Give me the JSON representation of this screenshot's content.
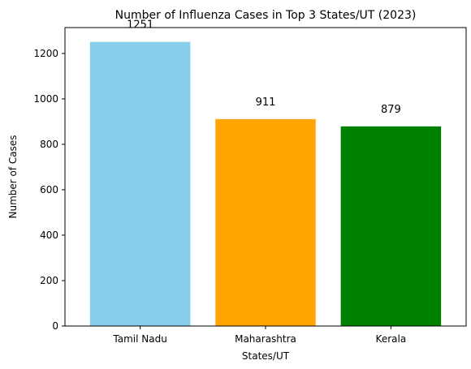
{
  "chart_data": {
    "type": "bar",
    "title": "Number of Influenza Cases in Top 3 States/UT (2023)",
    "xlabel": "States/UT",
    "ylabel": "Number of Cases",
    "categories": [
      "Tamil Nadu",
      "Maharashtra",
      "Kerala"
    ],
    "values": [
      1251,
      911,
      879
    ],
    "data_labels": [
      "1251",
      "911",
      "879"
    ],
    "colors": [
      "#87ceeb",
      "#ffa500",
      "#008000"
    ],
    "ylim": [
      0,
      1314
    ],
    "yticks": [
      0,
      200,
      400,
      600,
      800,
      1000,
      1200
    ],
    "ytick_labels": [
      "0",
      "200",
      "400",
      "600",
      "800",
      "1000",
      "1200"
    ],
    "grid": false,
    "legend": "none"
  }
}
